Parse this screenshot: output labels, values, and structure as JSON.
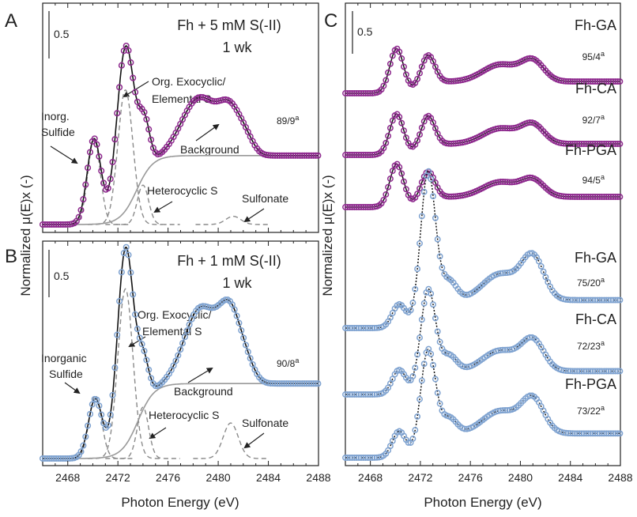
{
  "colors": {
    "purple": "#8e2a8e",
    "blue": "#7ea2d0",
    "fit_line": "#111111",
    "component": "#8a8a8a",
    "background_line": "#999999"
  },
  "figure": {
    "y_axis_title_left": "Normalized μ(E)x (-)",
    "y_axis_title_right": "Normalized μ(E)x (-)",
    "x_axis_title": "Photon Energy (eV)",
    "scale_bar_label": "0.5"
  },
  "chart_data": [
    {
      "panel": "A",
      "type": "line",
      "title_line1": "Fh + 5 mM S(-II)",
      "title_line2": "1 wk",
      "ratio": "89/9",
      "ratio_sup": "a",
      "xlim": [
        2466,
        2488
      ],
      "x_ticks": [],
      "marker_color": "purple",
      "annotations": [
        "Inorg.\nSulfide",
        "Org. Exocyclic/\nElemental S",
        "Background",
        "Heterocyclic S",
        "Sulfonate"
      ],
      "series": [
        {
          "name": "Data",
          "style": "markers"
        },
        {
          "name": "Fit",
          "style": "line"
        },
        {
          "name": "Background",
          "style": "line"
        }
      ],
      "spectrum": {
        "peaks": [
          [
            2470.1,
            0.52,
            0.55
          ],
          [
            2472.6,
            1.0,
            0.7
          ],
          [
            2474.1,
            0.28,
            0.45
          ],
          [
            2478.5,
            0.35,
            1.4
          ],
          [
            2481.0,
            0.25,
            0.9
          ],
          [
            2482.3,
            0.06,
            0.6
          ]
        ],
        "step": 0.42,
        "step_center": 2473.5,
        "step_width": 1.3,
        "y_max": 1.05
      },
      "components": [
        {
          "name": "Inorg. Sulfide",
          "center": 2470.1,
          "height": 0.52,
          "width": 0.5
        },
        {
          "name": "Org. Exocyclic/Elemental S",
          "center": 2472.6,
          "height": 0.82,
          "width": 0.6
        },
        {
          "name": "Heterocyclic S",
          "center": 2474.0,
          "height": 0.24,
          "width": 0.45
        },
        {
          "name": "Sulfonate",
          "center": 2481.2,
          "height": 0.05,
          "width": 0.6
        }
      ]
    },
    {
      "panel": "B",
      "type": "line",
      "title_line1": "Fh + 1 mM S(-II)",
      "title_line2": "1 wk",
      "ratio": "90/8",
      "ratio_sup": "a",
      "xlim": [
        2466,
        2488
      ],
      "x_ticks": [
        2468,
        2472,
        2476,
        2480,
        2484,
        2488
      ],
      "marker_color": "blue",
      "annotations": [
        "Inorganic\nSulfide",
        "Org. Exocyclic/\nElemental S",
        "Background",
        "Heterocyclic S",
        "Sulfonate"
      ],
      "series": [
        {
          "name": "Data",
          "style": "markers"
        },
        {
          "name": "Fit",
          "style": "line"
        },
        {
          "name": "Background",
          "style": "line"
        }
      ],
      "spectrum": {
        "peaks": [
          [
            2470.2,
            0.3,
            0.55
          ],
          [
            2472.6,
            1.0,
            0.65
          ],
          [
            2474.0,
            0.22,
            0.45
          ],
          [
            2478.6,
            0.38,
            1.3
          ],
          [
            2481.0,
            0.34,
            0.9
          ],
          [
            2482.4,
            0.05,
            0.6
          ]
        ],
        "step": 0.38,
        "step_center": 2473.6,
        "step_width": 1.3,
        "y_max": 1.05
      },
      "components": [
        {
          "name": "Inorganic Sulfide",
          "center": 2470.2,
          "height": 0.32,
          "width": 0.5
        },
        {
          "name": "Org. Exocyclic/Elemental S",
          "center": 2472.6,
          "height": 0.86,
          "width": 0.6
        },
        {
          "name": "Heterocyclic S",
          "center": 2474.0,
          "height": 0.26,
          "width": 0.45
        },
        {
          "name": "Sulfonate",
          "center": 2481.0,
          "height": 0.18,
          "width": 0.6
        }
      ]
    },
    {
      "panel": "C",
      "type": "line",
      "xlim": [
        2466,
        2488
      ],
      "x_ticks": [
        2468,
        2472,
        2476,
        2480,
        2484,
        2488
      ],
      "series": [
        {
          "name": "Fh-GA",
          "ratio": "95/4",
          "ratio_sup": "a",
          "color": "purple",
          "spectrum": {
            "peaks": [
              [
                2470.1,
                0.6,
                0.55
              ],
              [
                2472.6,
                0.4,
                0.55
              ],
              [
                2478.4,
                0.23,
                1.4
              ],
              [
                2481.0,
                0.27,
                0.9
              ]
            ],
            "step": 0.16,
            "step_center": 2472.0,
            "step_width": 1.2
          }
        },
        {
          "name": "Fh-CA",
          "ratio": "92/7",
          "ratio_sup": "a",
          "color": "purple",
          "spectrum": {
            "peaks": [
              [
                2470.1,
                0.55,
                0.55
              ],
              [
                2472.6,
                0.42,
                0.55
              ],
              [
                2478.4,
                0.21,
                1.4
              ],
              [
                2481.0,
                0.25,
                0.9
              ]
            ],
            "step": 0.15,
            "step_center": 2472.0,
            "step_width": 1.2
          }
        },
        {
          "name": "Fh-PGA",
          "ratio": "94/5",
          "ratio_sup": "a",
          "color": "purple",
          "spectrum": {
            "peaks": [
              [
                2470.1,
                0.58,
                0.55
              ],
              [
                2472.6,
                0.38,
                0.55
              ],
              [
                2478.4,
                0.2,
                1.4
              ],
              [
                2481.0,
                0.22,
                0.9
              ]
            ],
            "step": 0.14,
            "step_center": 2472.0,
            "step_width": 1.2
          }
        },
        {
          "name": "Fh-GA",
          "ratio": "75/20",
          "ratio_sup": "a",
          "color": "blue",
          "spectrum": {
            "peaks": [
              [
                2470.3,
                0.25,
                0.55
              ],
              [
                2472.6,
                1.55,
                0.6
              ],
              [
                2474.3,
                0.22,
                0.6
              ],
              [
                2478.4,
                0.28,
                1.4
              ],
              [
                2481.0,
                0.45,
                0.9
              ]
            ],
            "step": 0.3,
            "step_center": 2472.8,
            "step_width": 1.2
          }
        },
        {
          "name": "Fh-CA",
          "ratio": "72/23",
          "ratio_sup": "a",
          "color": "blue",
          "spectrum": {
            "peaks": [
              [
                2470.3,
                0.26,
                0.55
              ],
              [
                2472.6,
                1.02,
                0.6
              ],
              [
                2474.3,
                0.18,
                0.6
              ],
              [
                2478.4,
                0.22,
                1.4
              ],
              [
                2481.0,
                0.32,
                0.9
              ]
            ],
            "step": 0.25,
            "step_center": 2472.8,
            "step_width": 1.2
          }
        },
        {
          "name": "Fh-PGA",
          "ratio": "73/22",
          "ratio_sup": "a",
          "color": "blue",
          "spectrum": {
            "peaks": [
              [
                2470.3,
                0.28,
                0.55
              ],
              [
                2472.6,
                1.05,
                0.6
              ],
              [
                2474.3,
                0.18,
                0.6
              ],
              [
                2478.4,
                0.24,
                1.4
              ],
              [
                2481.0,
                0.36,
                0.9
              ]
            ],
            "step": 0.26,
            "step_center": 2472.8,
            "step_width": 1.2
          }
        }
      ]
    }
  ]
}
